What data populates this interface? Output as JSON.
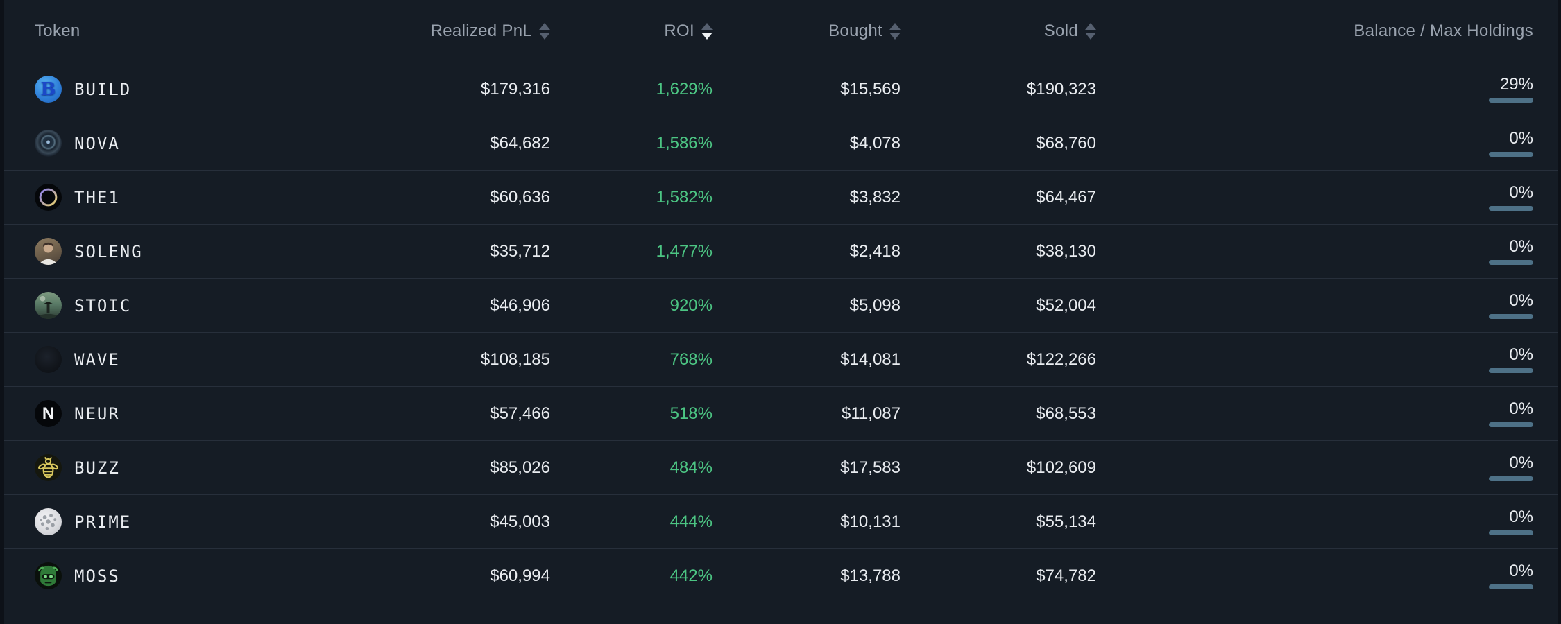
{
  "colors": {
    "background": "#151c25",
    "row_divider": "#272f3b",
    "header_text": "#99a2ae",
    "value_text": "#e9ecf0",
    "roi_green": "#4cc583",
    "bar_track": "#4e7187",
    "bar_fill": "#8bc7ea"
  },
  "table": {
    "columns": [
      {
        "key": "token",
        "label": "Token",
        "sortable": false,
        "sort": "none"
      },
      {
        "key": "pnl",
        "label": "Realized PnL",
        "sortable": true,
        "sort": "none"
      },
      {
        "key": "roi",
        "label": "ROI",
        "sortable": true,
        "sort": "desc"
      },
      {
        "key": "bought",
        "label": "Bought",
        "sortable": true,
        "sort": "none"
      },
      {
        "key": "sold",
        "label": "Sold",
        "sortable": true,
        "sort": "none"
      },
      {
        "key": "balance",
        "label": "Balance / Max Holdings",
        "sortable": false,
        "sort": "none"
      }
    ],
    "rows": [
      {
        "token": "BUILD",
        "icon": "build-coin-icon",
        "icon_style": "i-build",
        "icon_text": "B",
        "pnl": "$179,316",
        "roi": "1,629%",
        "bought": "$15,569",
        "sold": "$190,323",
        "balance_pct": "29%",
        "balance_fill": 30
      },
      {
        "token": "NOVA",
        "icon": "nova-portal-icon",
        "icon_style": "i-nova",
        "icon_text": "",
        "pnl": "$64,682",
        "roi": "1,586%",
        "bought": "$4,078",
        "sold": "$68,760",
        "balance_pct": "0%",
        "balance_fill": 0
      },
      {
        "token": "THE1",
        "icon": "the1-circle-icon",
        "icon_style": "i-the1",
        "icon_text": "",
        "pnl": "$60,636",
        "roi": "1,582%",
        "bought": "$3,832",
        "sold": "$64,467",
        "balance_pct": "0%",
        "balance_fill": 0
      },
      {
        "token": "SOLENG",
        "icon": "soleng-avatar-icon",
        "icon_style": "i-soleng",
        "icon_text": "",
        "pnl": "$35,712",
        "roi": "1,477%",
        "bought": "$2,418",
        "sold": "$38,130",
        "balance_pct": "0%",
        "balance_fill": 0
      },
      {
        "token": "STOIC",
        "icon": "stoic-samurai-icon",
        "icon_style": "i-stoic",
        "icon_text": "",
        "pnl": "$46,906",
        "roi": "920%",
        "bought": "$5,098",
        "sold": "$52,004",
        "balance_pct": "0%",
        "balance_fill": 0
      },
      {
        "token": "WAVE",
        "icon": "wave-dark-icon",
        "icon_style": "i-wave",
        "icon_text": "",
        "pnl": "$108,185",
        "roi": "768%",
        "bought": "$14,081",
        "sold": "$122,266",
        "balance_pct": "0%",
        "balance_fill": 0
      },
      {
        "token": "NEUR",
        "icon": "neur-n-icon",
        "icon_style": "i-neur",
        "icon_text": "N",
        "pnl": "$57,466",
        "roi": "518%",
        "bought": "$11,087",
        "sold": "$68,553",
        "balance_pct": "0%",
        "balance_fill": 0
      },
      {
        "token": "BUZZ",
        "icon": "buzz-bee-icon",
        "icon_style": "i-buzz",
        "icon_text": "",
        "pnl": "$85,026",
        "roi": "484%",
        "bought": "$17,583",
        "sold": "$102,609",
        "balance_pct": "0%",
        "balance_fill": 0
      },
      {
        "token": "PRIME",
        "icon": "prime-molecule-icon",
        "icon_style": "i-prime",
        "icon_text": "",
        "pnl": "$45,003",
        "roi": "444%",
        "bought": "$10,131",
        "sold": "$55,134",
        "balance_pct": "0%",
        "balance_fill": 0
      },
      {
        "token": "MOSS",
        "icon": "moss-frog-icon",
        "icon_style": "i-moss",
        "icon_text": "",
        "pnl": "$60,994",
        "roi": "442%",
        "bought": "$13,788",
        "sold": "$74,782",
        "balance_pct": "0%",
        "balance_fill": 0
      }
    ]
  }
}
